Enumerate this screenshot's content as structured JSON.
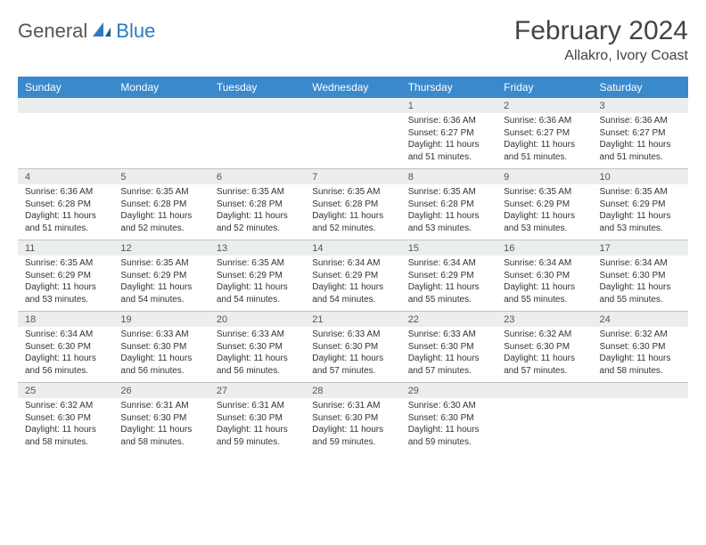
{
  "brand": {
    "general": "General",
    "blue": "Blue"
  },
  "title": "February 2024",
  "location": "Allakro, Ivory Coast",
  "colors": {
    "header_bg": "#3a89cc",
    "header_text": "#ffffff",
    "daynum_bg": "#eceeee",
    "border": "#b9c4ce",
    "text": "#333333",
    "brand_blue": "#2c7bc0",
    "brand_gray": "#555555"
  },
  "day_headers": [
    "Sunday",
    "Monday",
    "Tuesday",
    "Wednesday",
    "Thursday",
    "Friday",
    "Saturday"
  ],
  "weeks": [
    [
      null,
      null,
      null,
      null,
      {
        "n": "1",
        "sunrise": "6:36 AM",
        "sunset": "6:27 PM",
        "day_h": "11",
        "day_m": "51"
      },
      {
        "n": "2",
        "sunrise": "6:36 AM",
        "sunset": "6:27 PM",
        "day_h": "11",
        "day_m": "51"
      },
      {
        "n": "3",
        "sunrise": "6:36 AM",
        "sunset": "6:27 PM",
        "day_h": "11",
        "day_m": "51"
      }
    ],
    [
      {
        "n": "4",
        "sunrise": "6:36 AM",
        "sunset": "6:28 PM",
        "day_h": "11",
        "day_m": "51"
      },
      {
        "n": "5",
        "sunrise": "6:35 AM",
        "sunset": "6:28 PM",
        "day_h": "11",
        "day_m": "52"
      },
      {
        "n": "6",
        "sunrise": "6:35 AM",
        "sunset": "6:28 PM",
        "day_h": "11",
        "day_m": "52"
      },
      {
        "n": "7",
        "sunrise": "6:35 AM",
        "sunset": "6:28 PM",
        "day_h": "11",
        "day_m": "52"
      },
      {
        "n": "8",
        "sunrise": "6:35 AM",
        "sunset": "6:28 PM",
        "day_h": "11",
        "day_m": "53"
      },
      {
        "n": "9",
        "sunrise": "6:35 AM",
        "sunset": "6:29 PM",
        "day_h": "11",
        "day_m": "53"
      },
      {
        "n": "10",
        "sunrise": "6:35 AM",
        "sunset": "6:29 PM",
        "day_h": "11",
        "day_m": "53"
      }
    ],
    [
      {
        "n": "11",
        "sunrise": "6:35 AM",
        "sunset": "6:29 PM",
        "day_h": "11",
        "day_m": "53"
      },
      {
        "n": "12",
        "sunrise": "6:35 AM",
        "sunset": "6:29 PM",
        "day_h": "11",
        "day_m": "54"
      },
      {
        "n": "13",
        "sunrise": "6:35 AM",
        "sunset": "6:29 PM",
        "day_h": "11",
        "day_m": "54"
      },
      {
        "n": "14",
        "sunrise": "6:34 AM",
        "sunset": "6:29 PM",
        "day_h": "11",
        "day_m": "54"
      },
      {
        "n": "15",
        "sunrise": "6:34 AM",
        "sunset": "6:29 PM",
        "day_h": "11",
        "day_m": "55"
      },
      {
        "n": "16",
        "sunrise": "6:34 AM",
        "sunset": "6:30 PM",
        "day_h": "11",
        "day_m": "55"
      },
      {
        "n": "17",
        "sunrise": "6:34 AM",
        "sunset": "6:30 PM",
        "day_h": "11",
        "day_m": "55"
      }
    ],
    [
      {
        "n": "18",
        "sunrise": "6:34 AM",
        "sunset": "6:30 PM",
        "day_h": "11",
        "day_m": "56"
      },
      {
        "n": "19",
        "sunrise": "6:33 AM",
        "sunset": "6:30 PM",
        "day_h": "11",
        "day_m": "56"
      },
      {
        "n": "20",
        "sunrise": "6:33 AM",
        "sunset": "6:30 PM",
        "day_h": "11",
        "day_m": "56"
      },
      {
        "n": "21",
        "sunrise": "6:33 AM",
        "sunset": "6:30 PM",
        "day_h": "11",
        "day_m": "57"
      },
      {
        "n": "22",
        "sunrise": "6:33 AM",
        "sunset": "6:30 PM",
        "day_h": "11",
        "day_m": "57"
      },
      {
        "n": "23",
        "sunrise": "6:32 AM",
        "sunset": "6:30 PM",
        "day_h": "11",
        "day_m": "57"
      },
      {
        "n": "24",
        "sunrise": "6:32 AM",
        "sunset": "6:30 PM",
        "day_h": "11",
        "day_m": "58"
      }
    ],
    [
      {
        "n": "25",
        "sunrise": "6:32 AM",
        "sunset": "6:30 PM",
        "day_h": "11",
        "day_m": "58"
      },
      {
        "n": "26",
        "sunrise": "6:31 AM",
        "sunset": "6:30 PM",
        "day_h": "11",
        "day_m": "58"
      },
      {
        "n": "27",
        "sunrise": "6:31 AM",
        "sunset": "6:30 PM",
        "day_h": "11",
        "day_m": "59"
      },
      {
        "n": "28",
        "sunrise": "6:31 AM",
        "sunset": "6:30 PM",
        "day_h": "11",
        "day_m": "59"
      },
      {
        "n": "29",
        "sunrise": "6:30 AM",
        "sunset": "6:30 PM",
        "day_h": "11",
        "day_m": "59"
      },
      null,
      null
    ]
  ],
  "labels": {
    "sunrise_prefix": "Sunrise: ",
    "sunset_prefix": "Sunset: ",
    "daylight_prefix": "Daylight: ",
    "hours_word": " hours",
    "and_word": "and ",
    "minutes_word": " minutes."
  }
}
